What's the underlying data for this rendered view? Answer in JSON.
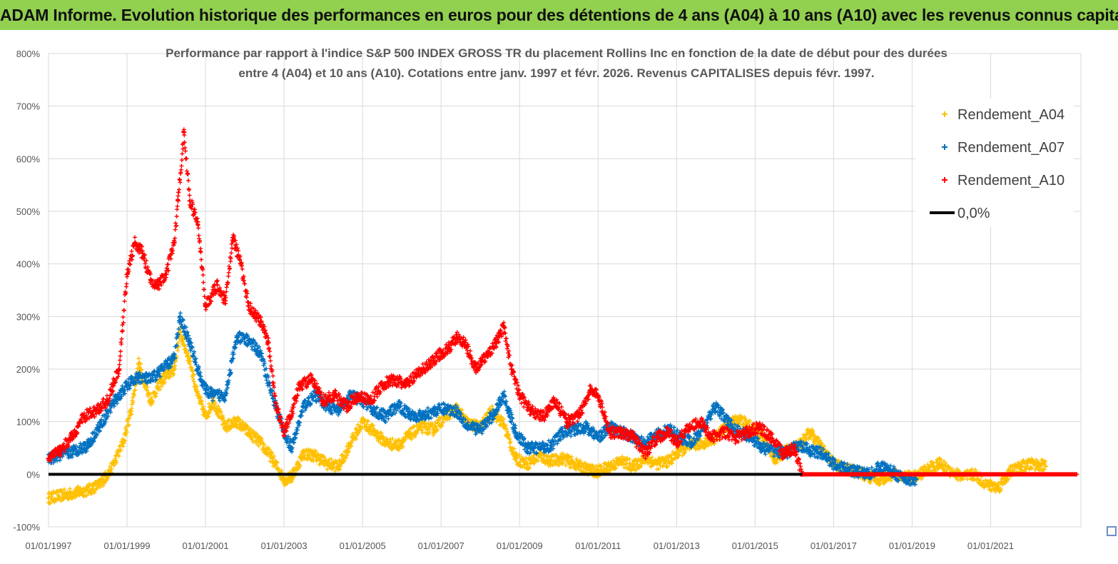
{
  "banner": {
    "title": "ADAM Informe. Evolution historique des performances en euros pour des détentions de 4 ans (A04) à 10 ans (A10) avec les revenus connus capitalisés"
  },
  "colors": {
    "banner_bg": "#92d050",
    "series_a04": "#ffc000",
    "series_a07": "#0070c0",
    "series_a10": "#ff0000",
    "zero_line": "#000000",
    "grid": "#d9d9d9"
  },
  "chart_data": {
    "type": "scatter",
    "title_line1": "Performance par rapport à l'indice S&P 500 INDEX GROSS TR  du placement Rollins Inc en fonction de la date de début pour des durées",
    "title_line2": "entre 4 (A04) et 10 ans (A10). Cotations entre janv. 1997 et févr. 2026. Revenus CAPITALISES depuis févr. 1997.",
    "xlabel": "",
    "ylabel": "",
    "ylim": [
      -100,
      800
    ],
    "xlim": [
      1997.0,
      2023.3
    ],
    "legend_position": "top-right",
    "grid": true,
    "y_ticks": [
      "-100%",
      "0%",
      "100%",
      "200%",
      "300%",
      "400%",
      "500%",
      "600%",
      "700%",
      "800%"
    ],
    "x_ticks": [
      {
        "year": 1997,
        "label": "01/01/1997"
      },
      {
        "year": 1999,
        "label": "01/01/1999"
      },
      {
        "year": 2001,
        "label": "01/01/2001"
      },
      {
        "year": 2003,
        "label": "01/01/2003"
      },
      {
        "year": 2005,
        "label": "01/01/2005"
      },
      {
        "year": 2007,
        "label": "01/01/2007"
      },
      {
        "year": 2009,
        "label": "01/01/2009"
      },
      {
        "year": 2011,
        "label": "01/01/2011"
      },
      {
        "year": 2013,
        "label": "01/01/2013"
      },
      {
        "year": 2015,
        "label": "01/01/2015"
      },
      {
        "year": 2017,
        "label": "01/01/2017"
      },
      {
        "year": 2019,
        "label": "01/01/2019"
      },
      {
        "year": 2021,
        "label": "01/01/2021"
      }
    ],
    "legend": [
      "Rendement_A04",
      "Rendement_A07",
      "Rendement_A10",
      "0,0%"
    ],
    "series": [
      {
        "name": "Rendement_A04",
        "x": [
          1997.0,
          1997.5,
          1998.0,
          1998.3,
          1998.6,
          1998.9,
          1999.1,
          1999.3,
          1999.6,
          1999.9,
          2000.2,
          2000.35,
          2000.6,
          2000.8,
          2001.0,
          2001.2,
          2001.5,
          2001.8,
          2002.1,
          2002.4,
          2002.7,
          2003.0,
          2003.2,
          2003.5,
          2003.8,
          2004.1,
          2004.4,
          2004.7,
          2005.0,
          2005.3,
          2005.6,
          2005.9,
          2006.2,
          2006.5,
          2006.8,
          2007.1,
          2007.4,
          2007.7,
          2008.0,
          2008.3,
          2008.6,
          2008.9,
          2009.2,
          2009.5,
          2009.8,
          2010.1,
          2010.4,
          2010.7,
          2011.0,
          2011.3,
          2011.6,
          2011.9,
          2012.2,
          2012.5,
          2012.8,
          2013.1,
          2013.4,
          2013.7,
          2014.0,
          2014.3,
          2014.6,
          2014.9,
          2015.2,
          2015.5,
          2015.8,
          2016.1,
          2016.4,
          2016.7,
          2017.0,
          2017.3,
          2017.6,
          2017.9,
          2018.2,
          2018.5,
          2018.8,
          2019.1,
          2019.4,
          2019.7,
          2020.0,
          2020.3,
          2020.6,
          2020.9,
          2021.2,
          2021.5,
          2021.8,
          2022.1,
          2022.4
        ],
        "values": [
          -45,
          -38,
          -30,
          -20,
          10,
          60,
          120,
          210,
          140,
          180,
          200,
          270,
          215,
          150,
          110,
          140,
          90,
          100,
          80,
          60,
          30,
          -10,
          -5,
          40,
          35,
          20,
          15,
          60,
          100,
          80,
          60,
          55,
          75,
          90,
          85,
          110,
          125,
          95,
          90,
          120,
          95,
          30,
          20,
          35,
          25,
          30,
          20,
          10,
          5,
          15,
          25,
          15,
          30,
          20,
          25,
          45,
          55,
          60,
          70,
          95,
          105,
          90,
          70,
          30,
          45,
          55,
          80,
          50,
          20,
          10,
          5,
          -5,
          -10,
          0,
          -5,
          -5,
          10,
          20,
          5,
          -5,
          0,
          -20,
          -25,
          5,
          15,
          20,
          15
        ]
      },
      {
        "name": "Rendement_A07",
        "x": [
          1997.0,
          1997.5,
          1998.0,
          1998.3,
          1998.6,
          1998.9,
          1999.1,
          1999.3,
          1999.6,
          1999.9,
          2000.2,
          2000.35,
          2000.6,
          2000.8,
          2001.0,
          2001.2,
          2001.5,
          2001.8,
          2002.1,
          2002.4,
          2002.7,
          2003.0,
          2003.2,
          2003.5,
          2003.8,
          2004.1,
          2004.4,
          2004.7,
          2005.0,
          2005.3,
          2005.6,
          2005.9,
          2006.2,
          2006.5,
          2006.8,
          2007.1,
          2007.4,
          2007.7,
          2008.0,
          2008.3,
          2008.6,
          2008.9,
          2009.2,
          2009.5,
          2009.8,
          2010.1,
          2010.4,
          2010.7,
          2011.0,
          2011.3,
          2011.6,
          2011.9,
          2012.2,
          2012.5,
          2012.8,
          2013.1,
          2013.4,
          2013.7,
          2014.0,
          2014.3,
          2014.6,
          2014.9,
          2015.2,
          2015.5,
          2015.8,
          2016.1,
          2016.4,
          2016.7,
          2017.0,
          2017.3,
          2017.6,
          2017.9,
          2018.2,
          2018.5,
          2018.8,
          2019.1
        ],
        "values": [
          30,
          40,
          55,
          90,
          130,
          160,
          175,
          185,
          180,
          200,
          220,
          300,
          250,
          200,
          160,
          150,
          150,
          260,
          255,
          230,
          150,
          80,
          50,
          130,
          150,
          130,
          120,
          150,
          140,
          120,
          110,
          130,
          115,
          110,
          120,
          125,
          120,
          90,
          85,
          110,
          150,
          80,
          50,
          50,
          55,
          80,
          85,
          90,
          70,
          90,
          80,
          70,
          60,
          75,
          85,
          70,
          60,
          90,
          130,
          100,
          80,
          70,
          50,
          45,
          40,
          55,
          45,
          40,
          20,
          10,
          5,
          0,
          15,
          5,
          -10,
          -10
        ]
      },
      {
        "name": "Rendement_A10",
        "x": [
          1997.0,
          1997.3,
          1997.6,
          1997.9,
          1998.2,
          1998.5,
          1998.8,
          1999.0,
          1999.2,
          1999.4,
          1999.6,
          1999.8,
          2000.0,
          2000.2,
          2000.3,
          2000.45,
          2000.6,
          2000.8,
          2001.0,
          2001.3,
          2001.5,
          2001.7,
          2001.9,
          2002.1,
          2002.4,
          2002.6,
          2002.8,
          2003.0,
          2003.2,
          2003.4,
          2003.7,
          2004.0,
          2004.3,
          2004.6,
          2004.9,
          2005.2,
          2005.5,
          2005.8,
          2006.1,
          2006.4,
          2006.7,
          2007.0,
          2007.2,
          2007.4,
          2007.6,
          2007.9,
          2008.2,
          2008.4,
          2008.6,
          2008.8,
          2009.0,
          2009.3,
          2009.6,
          2009.9,
          2010.2,
          2010.5,
          2010.8,
          2011.0,
          2011.3,
          2011.6,
          2011.9,
          2012.2,
          2012.5,
          2012.8,
          2013.0,
          2013.3,
          2013.6,
          2013.9,
          2014.2,
          2014.5,
          2014.8,
          2015.1,
          2015.4,
          2015.7,
          2016.0,
          2016.2
        ],
        "values": [
          30,
          45,
          70,
          110,
          120,
          140,
          200,
          380,
          440,
          420,
          370,
          360,
          380,
          440,
          520,
          650,
          520,
          480,
          320,
          360,
          330,
          450,
          400,
          320,
          290,
          250,
          130,
          80,
          120,
          170,
          180,
          140,
          150,
          130,
          150,
          140,
          170,
          180,
          170,
          190,
          210,
          230,
          240,
          260,
          250,
          200,
          230,
          250,
          280,
          200,
          150,
          120,
          110,
          140,
          100,
          110,
          160,
          150,
          80,
          80,
          70,
          40,
          70,
          80,
          60,
          90,
          100,
          70,
          80,
          70,
          80,
          90,
          70,
          40,
          50,
          0
        ]
      }
    ],
    "zero_line": {
      "name": "0,0%",
      "value": 0
    }
  }
}
